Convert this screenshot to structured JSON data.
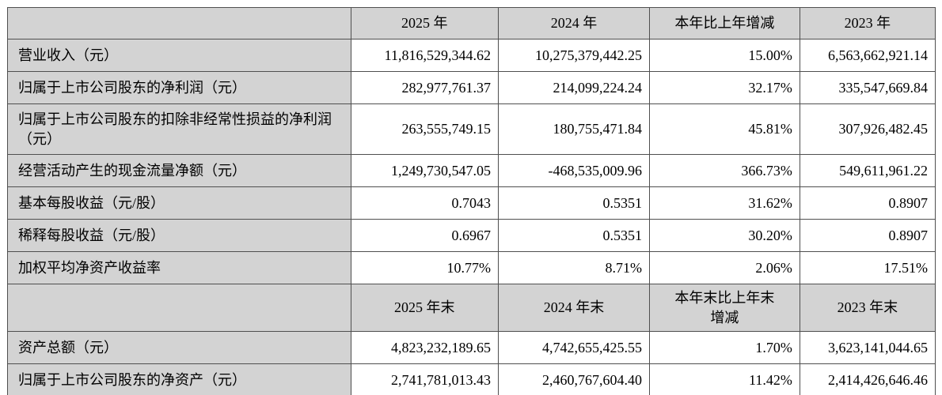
{
  "colors": {
    "header_bg": "#d3d3d3",
    "label_bg": "#d3d3d3",
    "cell_bg": "#ffffff",
    "border": "#4f4f4f",
    "text": "#000000"
  },
  "table": {
    "rows": [
      {
        "type": "header",
        "cells": [
          "",
          "2025 年",
          "2024 年",
          "本年比上年增减",
          "2023 年"
        ]
      },
      {
        "type": "data",
        "cells": [
          "营业收入（元）",
          "11,816,529,344.62",
          "10,275,379,442.25",
          "15.00%",
          "6,563,662,921.14"
        ]
      },
      {
        "type": "data",
        "cells": [
          "归属于上市公司股东的净利润（元）",
          "282,977,761.37",
          "214,099,224.24",
          "32.17%",
          "335,547,669.84"
        ]
      },
      {
        "type": "data",
        "cells": [
          "归属于上市公司股东的扣除非经常性损益的净利润（元）",
          "263,555,749.15",
          "180,755,471.84",
          "45.81%",
          "307,926,482.45"
        ]
      },
      {
        "type": "data",
        "cells": [
          "经营活动产生的现金流量净额（元）",
          "1,249,730,547.05",
          "-468,535,009.96",
          "366.73%",
          "549,611,961.22"
        ]
      },
      {
        "type": "data",
        "cells": [
          "基本每股收益（元/股）",
          "0.7043",
          "0.5351",
          "31.62%",
          "0.8907"
        ]
      },
      {
        "type": "data",
        "cells": [
          "稀释每股收益（元/股）",
          "0.6967",
          "0.5351",
          "30.20%",
          "0.8907"
        ]
      },
      {
        "type": "data",
        "cells": [
          "加权平均净资产收益率",
          "10.77%",
          "8.71%",
          "2.06%",
          "17.51%"
        ]
      },
      {
        "type": "header",
        "cells": [
          "",
          "2025 年末",
          "2024 年末",
          "本年末比上年末\n增减",
          "2023 年末"
        ]
      },
      {
        "type": "data",
        "cells": [
          "资产总额（元）",
          "4,823,232,189.65",
          "4,742,655,425.55",
          "1.70%",
          "3,623,141,044.65"
        ]
      },
      {
        "type": "data",
        "cells": [
          "归属于上市公司股东的净资产（元）",
          "2,741,781,013.43",
          "2,460,767,604.40",
          "11.42%",
          "2,414,426,646.46"
        ]
      }
    ]
  }
}
